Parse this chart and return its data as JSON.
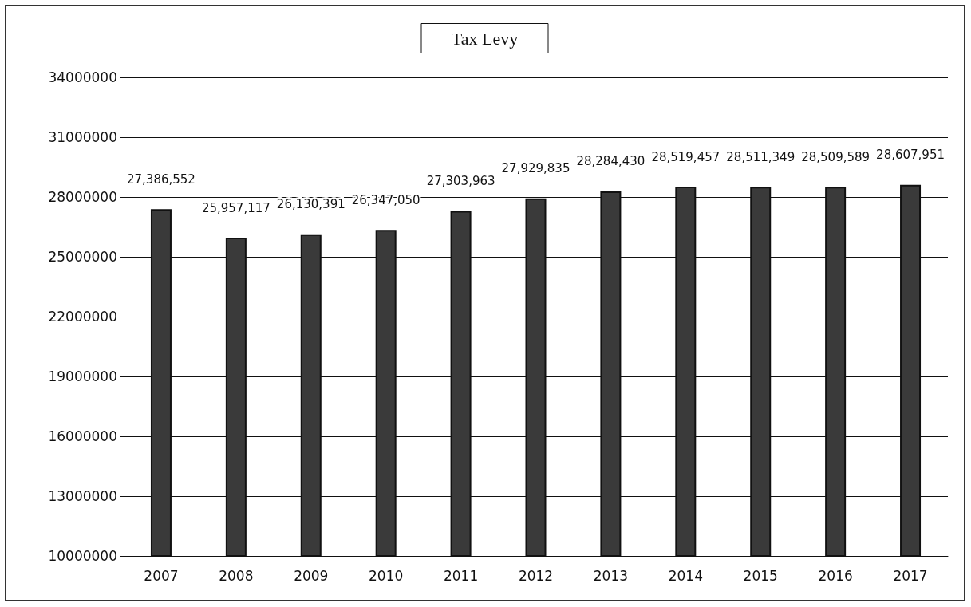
{
  "chart_data": {
    "type": "bar",
    "title": "Tax Levy",
    "categories": [
      "2007",
      "2008",
      "2009",
      "2010",
      "2011",
      "2012",
      "2013",
      "2014",
      "2015",
      "2016",
      "2017"
    ],
    "values": [
      27386552,
      25957117,
      26130391,
      26347050,
      27303963,
      27929835,
      28284430,
      28519457,
      28511349,
      28509589,
      28607951
    ],
    "value_labels": [
      "27,386,552",
      "25,957,117",
      "26,130,391",
      "26,347,050",
      "27,303,963",
      "27,929,835",
      "28,284,430",
      "28,519,457",
      "28,511,349",
      "28,509,589",
      "28,607,951"
    ],
    "color": "#3a3a3a",
    "ylim": [
      10000000,
      34000000
    ],
    "yticks": [
      10000000,
      13000000,
      16000000,
      19000000,
      22000000,
      25000000,
      28000000,
      31000000,
      34000000
    ],
    "grid": "y"
  }
}
